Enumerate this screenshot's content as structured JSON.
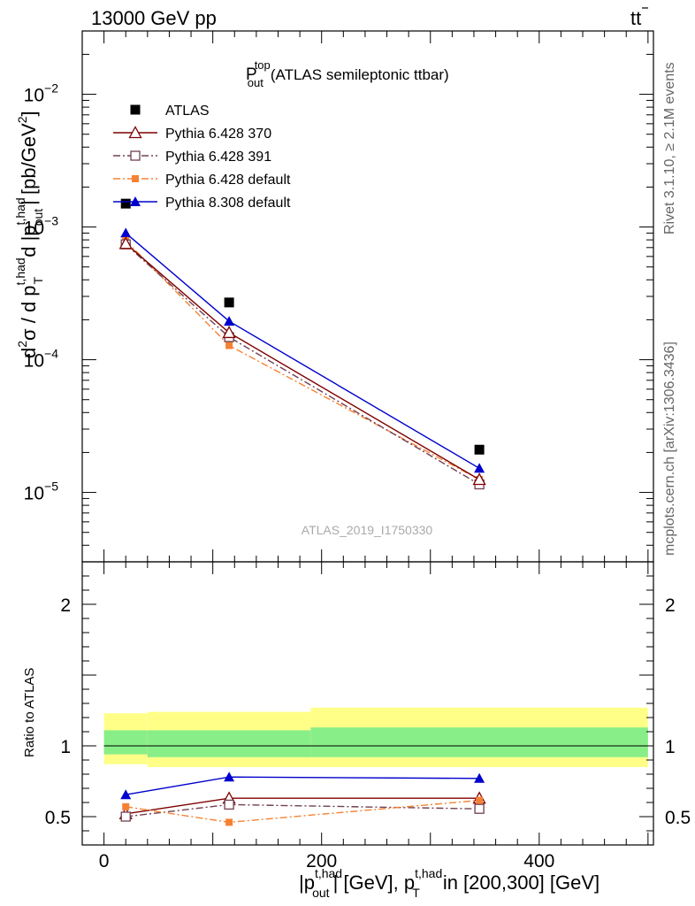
{
  "header": {
    "energy_label": "13000 GeV pp",
    "process_label_main": "t",
    "process_label_bar": "t"
  },
  "side_text": {
    "rivet": "Rivet 3.1.10, ≥ 2.1M events",
    "mcplots": "mcplots.cern.ch [arXiv:1306.3436]"
  },
  "plot_title": {
    "p": "P",
    "sup": "top",
    "sub": "out",
    "rest": "(ATLAS semileptonic ttbar)"
  },
  "analysis_id": "ATLAS_2019_I1750330",
  "y_main_label": {
    "a": "d",
    "a_sup": "2",
    "b": "σ / d p",
    "b_sup": "t,had",
    "b_sub": "T",
    "c": "d |p",
    "c_sup": "t,had",
    "c_sub": "out",
    "d": "| [pb/GeV",
    "d_sup": "2",
    "e": "]"
  },
  "y_ratio_label": "Ratio to ATLAS",
  "x_label": {
    "a": "|p",
    "a_sup": "t,had",
    "a_sub": "out",
    "b": "| [GeV], p",
    "b_sup": "t,had",
    "b_sub": "T",
    "c": "in [200,300] [GeV]"
  },
  "colors": {
    "atlas": "#000000",
    "py6_370": "#7f0000",
    "py6_391": "#704050",
    "py6_default": "#f58233",
    "py8_default": "#0000cc",
    "band_outer": "#ffff88",
    "band_inner": "#88ee88"
  },
  "chart_data": [
    {
      "type": "scatter",
      "panel": "main",
      "x": [
        20,
        115,
        345
      ],
      "xlim": [
        -20,
        505
      ],
      "ylim": [
        3e-06,
        0.03
      ],
      "y_scale": "log",
      "y_ticks": [
        {
          "value": 1e-05,
          "base": "10",
          "exp": "−5"
        },
        {
          "value": 0.0001,
          "base": "10",
          "exp": "−4"
        },
        {
          "value": 0.001,
          "base": "10",
          "exp": "−3"
        },
        {
          "value": 0.01,
          "base": "10",
          "exp": "−2"
        }
      ],
      "legend_position": "top-left",
      "series": [
        {
          "name": "ATLAS",
          "key": "atlas",
          "marker": "square-filled",
          "line": "none",
          "values": [
            0.0015,
            0.00027,
            2.1e-05
          ]
        },
        {
          "name": "Pythia 6.428 370",
          "key": "py6_370",
          "marker": "triangle-open",
          "line": "solid",
          "values": [
            0.00075,
            0.00016,
            1.25e-05
          ]
        },
        {
          "name": "Pythia 6.428 391",
          "key": "py6_391",
          "marker": "square-open",
          "line": "dashdot",
          "values": [
            0.00074,
            0.000148,
            1.15e-05
          ]
        },
        {
          "name": "Pythia 6.428 default",
          "key": "py6_default",
          "marker": "square-filled-small",
          "line": "dashdot",
          "values": [
            0.00079,
            0.000128,
            1.25e-05
          ]
        },
        {
          "name": "Pythia 8.308 default",
          "key": "py8_default",
          "marker": "triangle-filled",
          "line": "solid",
          "values": [
            0.0009,
            0.000195,
            1.52e-05
          ]
        }
      ]
    },
    {
      "type": "line",
      "panel": "ratio",
      "x": [
        20,
        115,
        345
      ],
      "xlim": [
        -20,
        505
      ],
      "ylim": [
        0.3,
        2.3
      ],
      "x_ticks": [
        0,
        200,
        400
      ],
      "y_ticks": [
        0.5,
        1,
        2
      ],
      "bands": {
        "edges": [
          0,
          40,
          190,
          500
        ],
        "outer_low": [
          0.87,
          0.85,
          0.85
        ],
        "outer_high": [
          1.23,
          1.24,
          1.27
        ],
        "inner_low": [
          0.94,
          0.92,
          0.92
        ],
        "inner_high": [
          1.11,
          1.11,
          1.13
        ]
      },
      "series": [
        {
          "name": "Pythia 6.428 370",
          "key": "py6_370",
          "values": [
            0.52,
            0.63,
            0.63
          ]
        },
        {
          "name": "Pythia 6.428 391",
          "key": "py6_391",
          "values": [
            0.5,
            0.585,
            0.555
          ]
        },
        {
          "name": "Pythia 6.428 default",
          "key": "py6_default",
          "values": [
            0.57,
            0.46,
            0.615
          ]
        },
        {
          "name": "Pythia 8.308 default",
          "key": "py8_default",
          "values": [
            0.655,
            0.78,
            0.77
          ]
        }
      ]
    }
  ]
}
